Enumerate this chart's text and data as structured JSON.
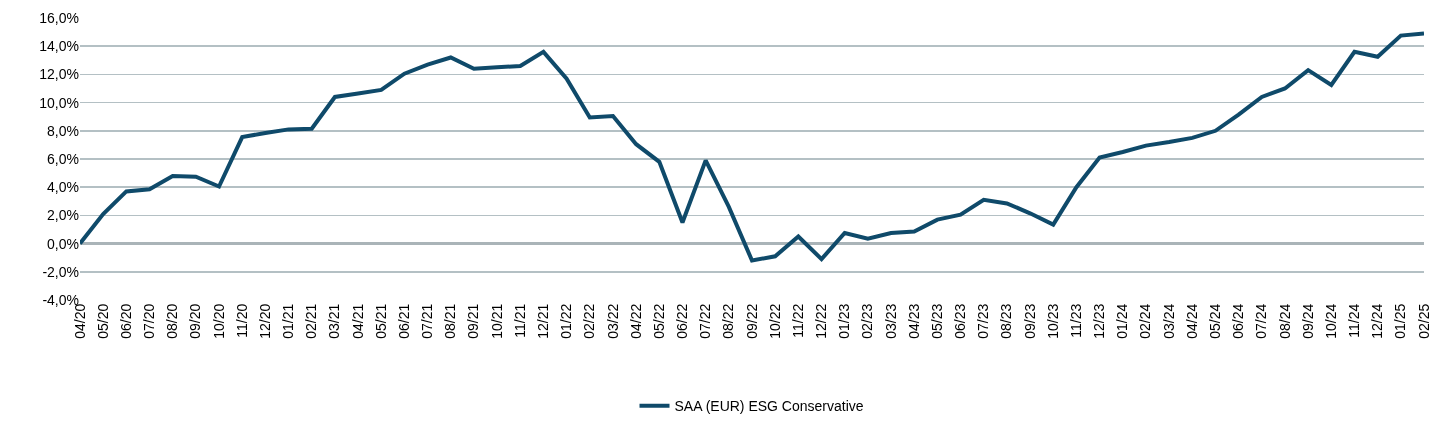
{
  "chart_data": {
    "type": "line",
    "categories": [
      "04/20",
      "05/20",
      "06/20",
      "07/20",
      "08/20",
      "09/20",
      "10/20",
      "11/20",
      "12/20",
      "01/21",
      "02/21",
      "03/21",
      "04/21",
      "05/21",
      "06/21",
      "07/21",
      "08/21",
      "09/21",
      "10/21",
      "11/21",
      "12/21",
      "01/22",
      "02/22",
      "03/22",
      "04/22",
      "05/22",
      "06/22",
      "07/22",
      "08/22",
      "09/22",
      "10/22",
      "11/22",
      "12/22",
      "01/23",
      "02/23",
      "03/23",
      "04/23",
      "05/23",
      "06/23",
      "07/23",
      "08/23",
      "09/23",
      "10/23",
      "11/23",
      "12/23",
      "01/24",
      "02/24",
      "03/24",
      "04/24",
      "05/24",
      "06/24",
      "07/24",
      "08/24",
      "09/24",
      "10/24",
      "11/24",
      "12/24",
      "01/25",
      "02/25"
    ],
    "series": [
      {
        "name": "SAA (EUR) ESG Conservative",
        "color": "#0f4a6a",
        "values": [
          0,
          2.1,
          3.7,
          3.85,
          4.8,
          4.75,
          4.05,
          7.55,
          7.85,
          8.1,
          8.15,
          10.4,
          10.65,
          10.9,
          12.05,
          12.7,
          13.2,
          12.4,
          12.5,
          12.6,
          13.6,
          11.7,
          8.95,
          9.05,
          7.05,
          5.8,
          1.5,
          5.9,
          2.6,
          -1.2,
          -0.9,
          0.5,
          -1.1,
          0.75,
          0.35,
          0.75,
          0.85,
          1.7,
          2.05,
          3.1,
          2.85,
          2.15,
          1.35,
          4.0,
          6.1,
          6.5,
          6.95,
          7.2,
          7.5,
          8.0,
          9.15,
          10.4,
          11.0,
          12.3,
          11.25,
          13.6,
          13.25,
          14.75,
          14.9
        ]
      }
    ],
    "ylim": [
      -4,
      16
    ],
    "yticks": [
      {
        "value": -4,
        "label": "-4,0%"
      },
      {
        "value": -2,
        "label": "-2,0%"
      },
      {
        "value": 0,
        "label": "0,0%"
      },
      {
        "value": 2,
        "label": "2,0%"
      },
      {
        "value": 4,
        "label": "4,0%"
      },
      {
        "value": 6,
        "label": "6,0%"
      },
      {
        "value": 8,
        "label": "8,0%"
      },
      {
        "value": 10,
        "label": "10,0%"
      },
      {
        "value": 12,
        "label": "12,0%"
      },
      {
        "value": 14,
        "label": "14,0%"
      },
      {
        "value": 16,
        "label": "16,0%"
      }
    ],
    "grid": "y",
    "legend": "bottom",
    "marker": "none",
    "line_style": "solid"
  }
}
